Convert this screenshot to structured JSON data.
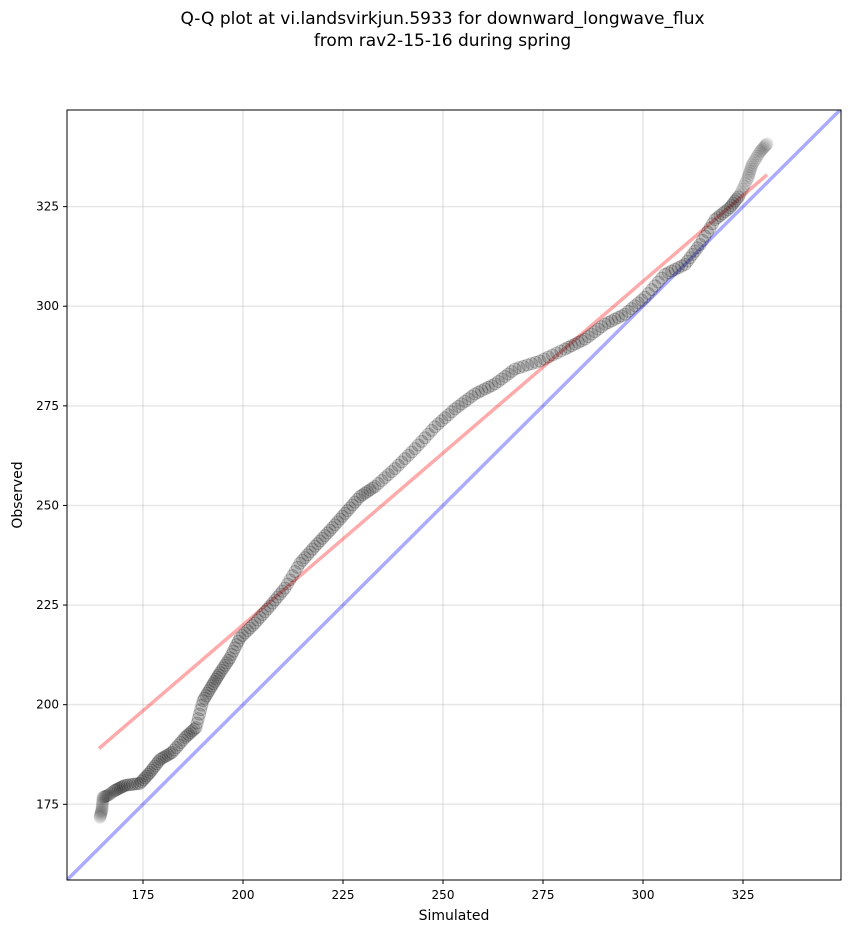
{
  "chart_data": {
    "type": "scatter",
    "title_line1": "Q-Q plot at vi.landsvirkjun.5933 for downward_longwave_flux",
    "title_line2": "from rav2-15-16 during spring",
    "xlabel": "Simulated",
    "ylabel": "Observed",
    "xlim": [
      156,
      349.5
    ],
    "ylim": [
      156,
      349.25
    ],
    "xticks": [
      175,
      200,
      225,
      250,
      275,
      300,
      325
    ],
    "yticks": [
      175,
      200,
      225,
      250,
      275,
      300,
      325
    ],
    "grid": true,
    "reference_line": {
      "name": "1:1",
      "color": "#0000ff",
      "from": [
        156,
        156
      ],
      "to": [
        349.5,
        349.5
      ]
    },
    "fit_line": {
      "name": "fit",
      "color": "#ff0000",
      "from": [
        164,
        189
      ],
      "to": [
        331,
        333
      ]
    },
    "points": [
      [
        164.25,
        171.75
      ],
      [
        164.75,
        173.75
      ],
      [
        165,
        176.75
      ],
      [
        166.25,
        177.25
      ],
      [
        168,
        178.5
      ],
      [
        170.5,
        179.75
      ],
      [
        174.25,
        180.25
      ],
      [
        176.75,
        183
      ],
      [
        179.25,
        186.25
      ],
      [
        182.25,
        188
      ],
      [
        185.5,
        191.75
      ],
      [
        188.25,
        194.25
      ],
      [
        190,
        201
      ],
      [
        192.25,
        204.75
      ],
      [
        194.25,
        208
      ],
      [
        196.75,
        211.75
      ],
      [
        199.25,
        216.75
      ],
      [
        203,
        220.5
      ],
      [
        206.75,
        224.75
      ],
      [
        210.5,
        229.25
      ],
      [
        214.25,
        235.5
      ],
      [
        218,
        239.75
      ],
      [
        221.75,
        243.75
      ],
      [
        225.5,
        248
      ],
      [
        229.25,
        252.25
      ],
      [
        233,
        254.75
      ],
      [
        238,
        259.25
      ],
      [
        243,
        264.25
      ],
      [
        248,
        269.75
      ],
      [
        253,
        274.25
      ],
      [
        258,
        278
      ],
      [
        263,
        280.5
      ],
      [
        268,
        284.25
      ],
      [
        274.25,
        286.25
      ],
      [
        280.5,
        289.25
      ],
      [
        285.5,
        291.75
      ],
      [
        290.5,
        295.5
      ],
      [
        295.5,
        298
      ],
      [
        300.5,
        302.25
      ],
      [
        305.5,
        308
      ],
      [
        310.5,
        310.5
      ],
      [
        314.25,
        315.5
      ],
      [
        318,
        321.75
      ],
      [
        321.75,
        324.75
      ],
      [
        324.25,
        328
      ],
      [
        326.25,
        332.25
      ],
      [
        327.25,
        335.5
      ],
      [
        329.25,
        338.75
      ],
      [
        331,
        340.75
      ]
    ]
  }
}
